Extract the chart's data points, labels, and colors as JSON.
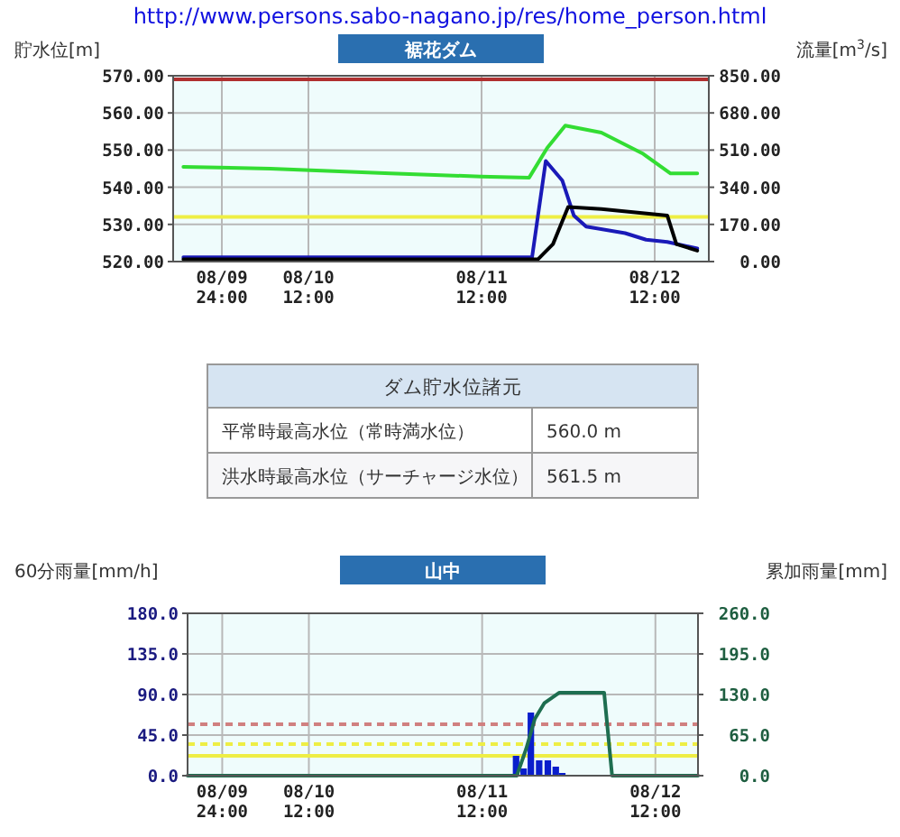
{
  "chart_data": [
    {
      "type": "line",
      "title": "裾花ダム",
      "ylabel": "貯水位[m]",
      "y2label": "流量[m$^{3}$/s]",
      "annotations": [
        "http://www.persons.sabo-nagano.jp/res/home_person.html"
      ],
      "xlim": [
        "--08-09T17:15",
        "--08-12T19:30"
      ],
      "xticks": [
        {
          "value": "--08-10T00:00",
          "label": "08/09 24:00"
        },
        {
          "value": "--08-10T12:00",
          "label": "08/10 12:00"
        },
        {
          "value": "--08-11T12:00",
          "label": "08/11 12:00"
        },
        {
          "value": "--08-12T12:00",
          "label": "08/12 12:00"
        }
      ],
      "ylim": [
        520,
        570
      ],
      "yticks": [
        {
          "value": 520,
          "label": "520.00"
        },
        {
          "value": 530,
          "label": "530.00"
        },
        {
          "value": 540,
          "label": "540.00"
        },
        {
          "value": 550,
          "label": "550.00"
        },
        {
          "value": 560,
          "label": "560.00"
        },
        {
          "value": 570,
          "label": "570.00"
        }
      ],
      "y2lim": [
        0,
        850
      ],
      "y2ticks": [
        {
          "value": 0,
          "label": "0.00"
        },
        {
          "value": 170,
          "label": "170.00"
        },
        {
          "value": 340,
          "label": "340.00"
        },
        {
          "value": 510,
          "label": "510.00"
        },
        {
          "value": 680,
          "label": "680.00"
        },
        {
          "value": 850,
          "label": "850.00"
        }
      ],
      "grid": true,
      "ref_lines": [
        {
          "axis": "y",
          "value": 569,
          "color": "#b03030",
          "line_style": "solid"
        },
        {
          "axis": "y",
          "value": 532,
          "color": "#eeee44",
          "line_style": "solid"
        }
      ],
      "series": [
        {
          "type": "line",
          "color": "#33dd33",
          "x": [
            "--08-09T18:40",
            "--08-10T06:45",
            "--08-10T23:24",
            "--08-11T11:54",
            "--08-11T18:36",
            "--08-11T21:06",
            "--08-11T23:36",
            "--08-12T04:36",
            "--08-12T10:24",
            "--08-12T14:12",
            "--08-12T17:54"
          ],
          "values": [
            545.5,
            545.0,
            543.7,
            542.9,
            542.6,
            550.6,
            556.6,
            554.7,
            549.0,
            543.7,
            543.7
          ]
        },
        {
          "type": "line",
          "axis": "y2",
          "color": "#1a1ab8",
          "x": [
            "--08-09T18:40",
            "--08-10T23:54",
            "--08-11T19:00",
            "--08-11T20:54",
            "--08-11T23:12",
            "--08-12T00:48",
            "--08-12T02:30",
            "--08-12T07:54",
            "--08-12T10:48",
            "--08-12T13:45",
            "--08-12T17:54"
          ],
          "values": [
            20,
            20,
            20,
            460,
            370,
            210,
            160,
            130,
            100,
            90,
            60
          ]
        },
        {
          "type": "line",
          "axis": "y2",
          "color": "#000000",
          "x": [
            "--08-09T18:40",
            "--08-11T19:48",
            "--08-11T21:54",
            "--08-12T00:00",
            "--08-12T04:36",
            "--08-12T13:45",
            "--08-12T15:00",
            "--08-12T17:54"
          ],
          "values": [
            10,
            10,
            80,
            250,
            240,
            210,
            80,
            50
          ]
        }
      ]
    },
    {
      "type": "other",
      "title": "ダム貯水位諸元",
      "annotations": [
        "平常時最高水位（常時満水位）",
        "560.0 m",
        "洪水時最高水位（サーチャージ水位）",
        "561.5 m"
      ]
    },
    {
      "type": "bar",
      "title": "山中",
      "ylabel": "60分雨量[mm/h]",
      "y2label": "累加雨量[mm]",
      "xlim": [
        "--08-09T19:12",
        "--08-12T17:54"
      ],
      "xticks": [
        {
          "value": "--08-10T00:00",
          "label": "08/09 24:00"
        },
        {
          "value": "--08-10T12:00",
          "label": "08/10 12:00"
        },
        {
          "value": "--08-11T12:00",
          "label": "08/11 12:00"
        },
        {
          "value": "--08-12T12:00",
          "label": "08/12 12:00"
        }
      ],
      "ylim": [
        0,
        180
      ],
      "yticks": [
        {
          "value": 0,
          "label": "0.0"
        },
        {
          "value": 45,
          "label": "45.0"
        },
        {
          "value": 90,
          "label": "90.0"
        },
        {
          "value": 135,
          "label": "135.0"
        },
        {
          "value": 180,
          "label": "180.0"
        }
      ],
      "y2lim": [
        0,
        260
      ],
      "y2ticks": [
        {
          "value": 0,
          "label": "0.0"
        },
        {
          "value": 65,
          "label": "65.0"
        },
        {
          "value": 130,
          "label": "130.0"
        },
        {
          "value": 195,
          "label": "195.0"
        },
        {
          "value": 260,
          "label": "260.0"
        }
      ],
      "grid": true,
      "ref_lines": [
        {
          "axis": "y",
          "value": 57,
          "color": "#d08080",
          "line_style": "dashed"
        },
        {
          "axis": "y",
          "value": 35,
          "color": "#eeee44",
          "line_style": "dashed"
        },
        {
          "axis": "y",
          "value": 22,
          "color": "#eeee44",
          "line_style": "solid"
        }
      ],
      "series": [
        {
          "type": "bar",
          "color": "#0a1ecc",
          "x": [
            "--08-11T16:42",
            "--08-11T17:45",
            "--08-11T18:45",
            "--08-11T19:54",
            "--08-11T21:06",
            "--08-11T22:12",
            "--08-11T23:06"
          ],
          "values": [
            22,
            8,
            70,
            17,
            17,
            10,
            3
          ]
        },
        {
          "type": "line",
          "axis": "y2",
          "color": "#1e6e50",
          "x": [
            "--08-09T19:12",
            "--08-11T16:48",
            "--08-11T18:06",
            "--08-11T19:18",
            "--08-11T20:36",
            "--08-11T22:42",
            "--08-12T04:54",
            "--08-12T06:00",
            "--08-12T17:54"
          ],
          "values": [
            0,
            0,
            43,
            91,
            116,
            133,
            133,
            0,
            0
          ]
        }
      ]
    }
  ]
}
